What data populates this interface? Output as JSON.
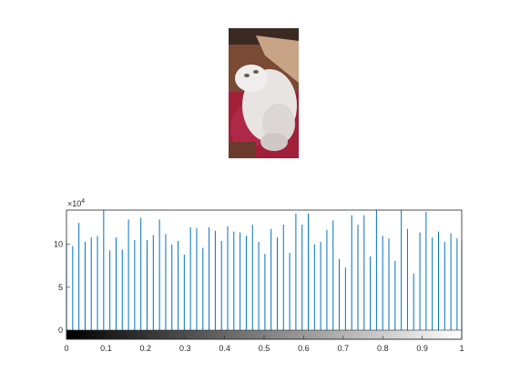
{
  "image_panel": {
    "description_icon": "cat-photo"
  },
  "chart_data": {
    "type": "bar",
    "subtype": "stem-histogram",
    "xlim": [
      0,
      1
    ],
    "ylim": [
      0,
      140000
    ],
    "xticks": [
      "0",
      "0.1",
      "0.2",
      "0.3",
      "0.4",
      "0.5",
      "0.6",
      "0.7",
      "0.8",
      "0.9",
      "1"
    ],
    "yticks": [
      "0",
      "5",
      "10"
    ],
    "y_exponent": "×10",
    "y_exponent_power": "4",
    "series_color": "#0072BD",
    "colorbar": "gray",
    "x": [
      0.0,
      0.0157,
      0.0314,
      0.0471,
      0.0627,
      0.0784,
      0.0941,
      0.1098,
      0.1255,
      0.1412,
      0.1569,
      0.1725,
      0.1882,
      0.2039,
      0.2196,
      0.2353,
      0.251,
      0.2667,
      0.2824,
      0.298,
      0.3137,
      0.3294,
      0.3451,
      0.3608,
      0.3765,
      0.3922,
      0.4078,
      0.4235,
      0.4392,
      0.4549,
      0.4706,
      0.4863,
      0.502,
      0.5176,
      0.5333,
      0.549,
      0.5647,
      0.5804,
      0.5961,
      0.6118,
      0.6275,
      0.6431,
      0.6588,
      0.6745,
      0.6902,
      0.7059,
      0.7216,
      0.7373,
      0.7529,
      0.7686,
      0.7843,
      0.8,
      0.8157,
      0.8314,
      0.8471,
      0.8627,
      0.8784,
      0.8941,
      0.9098,
      0.9255,
      0.9412,
      0.9569,
      0.9725,
      0.9882,
      1.0
    ],
    "values": [
      103000,
      98000,
      125000,
      103000,
      108000,
      110000,
      140000,
      93000,
      108000,
      94000,
      129000,
      105000,
      131000,
      105000,
      111000,
      129000,
      112000,
      100000,
      104000,
      88000,
      120000,
      119000,
      96000,
      120000,
      116000,
      104000,
      121000,
      115000,
      114000,
      110000,
      123000,
      103000,
      89000,
      118000,
      108000,
      123000,
      90000,
      136000,
      123000,
      136000,
      100000,
      103000,
      117000,
      128000,
      83000,
      73000,
      134000,
      123000,
      134000,
      86000,
      140000,
      110000,
      107000,
      81000,
      140000,
      118000,
      66000,
      114000,
      138000,
      108000,
      115000,
      103000,
      113000,
      107000,
      105000
    ]
  }
}
